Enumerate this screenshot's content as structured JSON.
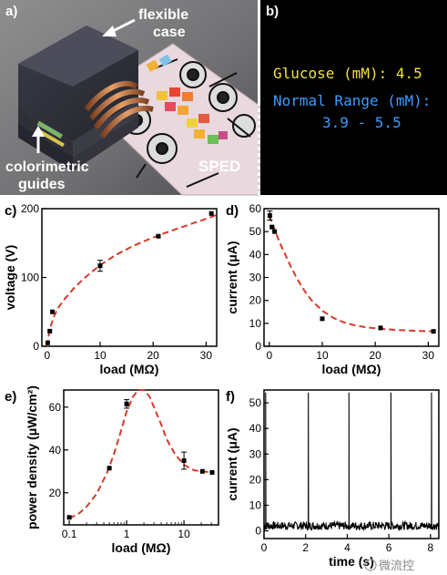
{
  "panel_a": {
    "label": "a)",
    "callouts": [
      "flexible",
      "case",
      "colorimetric",
      "guides",
      "SPED"
    ]
  },
  "panel_b": {
    "label": "b)",
    "line1": "Glucose (mM): 4.5",
    "line2": "Normal Range (mM):",
    "line3": "3.9 - 5.5",
    "line1_color": "#f2e23a",
    "line2_color": "#3d9cff"
  },
  "watermark": "微流控",
  "chart_data": [
    {
      "panel": "c)",
      "type": "scatter",
      "xlabel": "load (MΩ)",
      "ylabel": "voltage (V)",
      "xlim": [
        -1,
        32
      ],
      "ylim": [
        0,
        200
      ],
      "xticks": [
        0,
        10,
        20,
        30
      ],
      "yticks": [
        0,
        100,
        200
      ],
      "points": [
        {
          "x": 0.1,
          "y": 5
        },
        {
          "x": 0.5,
          "y": 22
        },
        {
          "x": 1,
          "y": 50
        },
        {
          "x": 10,
          "y": 117,
          "err": 8
        },
        {
          "x": 21,
          "y": 160
        },
        {
          "x": 31,
          "y": 193
        }
      ],
      "fit": [
        [
          0,
          0
        ],
        [
          0.3,
          16
        ],
        [
          0.7,
          30
        ],
        [
          1.2,
          42
        ],
        [
          2,
          55
        ],
        [
          3,
          66
        ],
        [
          5,
          84
        ],
        [
          7,
          99
        ],
        [
          10,
          118
        ],
        [
          13,
          133
        ],
        [
          16,
          145
        ],
        [
          19,
          155
        ],
        [
          22,
          164
        ],
        [
          25,
          172
        ],
        [
          28,
          180
        ],
        [
          31,
          188
        ],
        [
          32,
          191
        ]
      ]
    },
    {
      "panel": "d)",
      "type": "scatter",
      "xlabel": "load (MΩ)",
      "ylabel": "current (μA)",
      "xlim": [
        -1,
        32
      ],
      "ylim": [
        0,
        60
      ],
      "xticks": [
        0,
        10,
        20,
        30
      ],
      "yticks": [
        0,
        10,
        20,
        30,
        40,
        50,
        60
      ],
      "points": [
        {
          "x": 0.1,
          "y": 57,
          "err": 2
        },
        {
          "x": 0.5,
          "y": 52
        },
        {
          "x": 1,
          "y": 50
        },
        {
          "x": 10,
          "y": 12
        },
        {
          "x": 21,
          "y": 8
        },
        {
          "x": 31,
          "y": 6.5
        }
      ],
      "fit": [
        [
          0,
          57
        ],
        [
          1,
          51
        ],
        [
          2,
          45
        ],
        [
          3,
          40
        ],
        [
          4,
          35
        ],
        [
          5,
          30.5
        ],
        [
          6,
          26.5
        ],
        [
          7,
          23
        ],
        [
          8,
          20
        ],
        [
          10,
          15.5
        ],
        [
          12,
          12.5
        ],
        [
          14,
          10.5
        ],
        [
          16,
          9.2
        ],
        [
          18,
          8.4
        ],
        [
          21,
          7.6
        ],
        [
          24,
          7.1
        ],
        [
          27,
          6.8
        ],
        [
          31,
          6.5
        ]
      ]
    },
    {
      "panel": "e)",
      "type": "scatter",
      "xlabel": "load (MΩ)",
      "ylabel": "power density (μW/cm²)",
      "xscale": "log",
      "xlim": [
        0.08,
        40
      ],
      "ylim": [
        5,
        68
      ],
      "xticks": [
        0.1,
        1,
        10
      ],
      "xtick_labels": [
        "0.1",
        "1",
        "10"
      ],
      "yticks": [
        20,
        40,
        60
      ],
      "points": [
        {
          "x": 0.1,
          "y": 8.5
        },
        {
          "x": 0.5,
          "y": 31.5
        },
        {
          "x": 1,
          "y": 61.5,
          "err": 2
        },
        {
          "x": 10,
          "y": 35,
          "err": 4
        },
        {
          "x": 21,
          "y": 30
        },
        {
          "x": 31,
          "y": 29.5
        }
      ],
      "fit": [
        [
          0.1,
          8
        ],
        [
          0.15,
          10.5
        ],
        [
          0.2,
          13.5
        ],
        [
          0.3,
          19.5
        ],
        [
          0.45,
          29
        ],
        [
          0.6,
          38
        ],
        [
          0.8,
          49
        ],
        [
          1.0,
          58
        ],
        [
          1.3,
          65
        ],
        [
          1.6,
          68
        ],
        [
          2,
          68
        ],
        [
          2.5,
          65
        ],
        [
          3,
          60
        ],
        [
          4,
          52
        ],
        [
          5,
          45
        ],
        [
          7,
          38
        ],
        [
          10,
          33
        ],
        [
          15,
          30.5
        ],
        [
          21,
          30
        ],
        [
          31,
          29.5
        ]
      ]
    },
    {
      "panel": "f)",
      "type": "line",
      "xlabel": "time (s)",
      "ylabel": "current (μA)",
      "xlim": [
        0,
        8.4
      ],
      "ylim": [
        -3,
        55
      ],
      "xticks": [
        0,
        2,
        4,
        6,
        8
      ],
      "yticks": [
        0,
        10,
        20,
        30,
        40,
        50
      ],
      "spikes": [
        {
          "t": 0.08,
          "peak": 54
        },
        {
          "t": 2.13,
          "peak": 54
        },
        {
          "t": 4.08,
          "peak": 54
        },
        {
          "t": 6.1,
          "peak": 54
        },
        {
          "t": 8.05,
          "peak": 54
        }
      ],
      "baseline": 2
    }
  ]
}
